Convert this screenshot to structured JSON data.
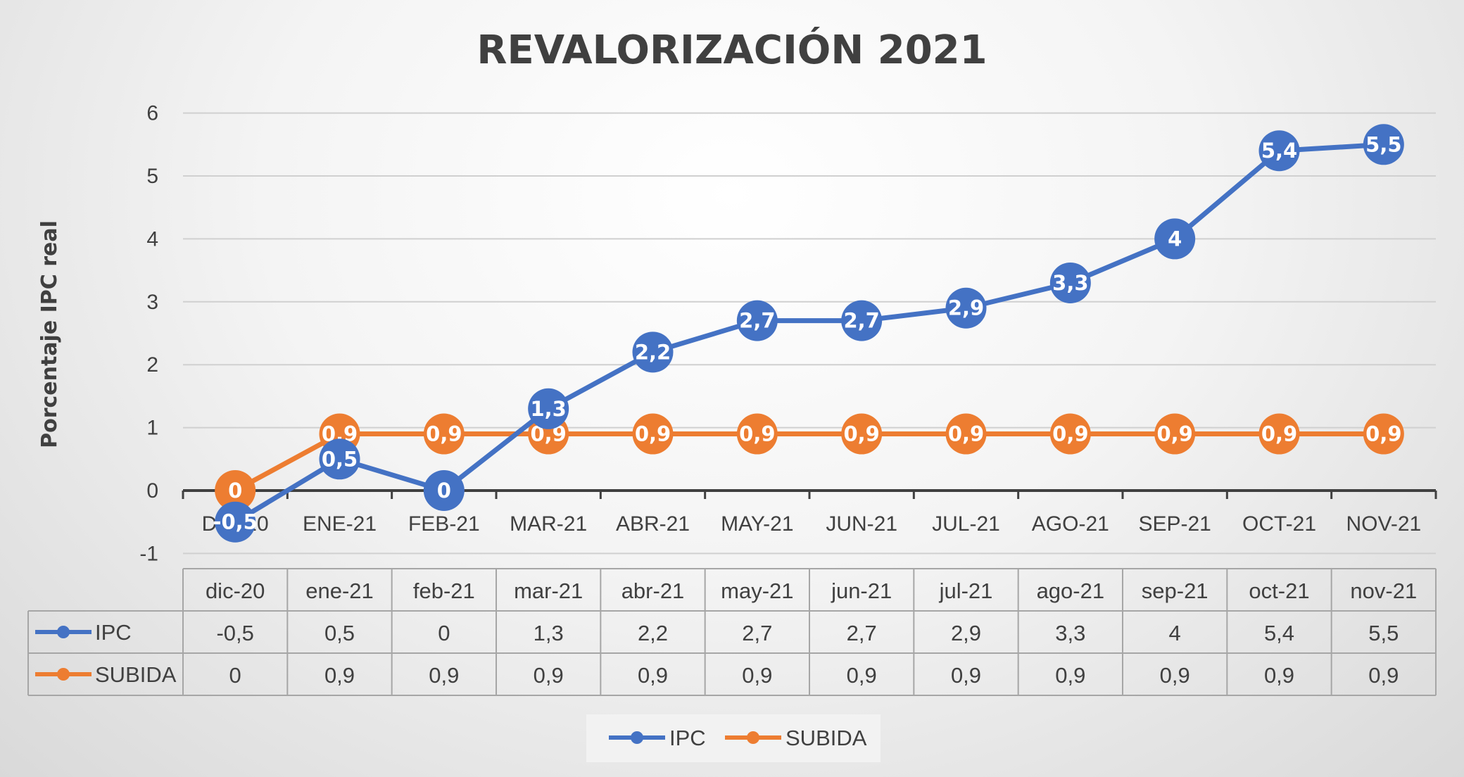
{
  "chart_data": {
    "type": "line",
    "title": "REVALORIZACIÓN 2021",
    "ylabel": "Porcentaje IPC real",
    "ylim": [
      -1,
      6
    ],
    "yticks": [
      -1,
      0,
      1,
      2,
      3,
      4,
      5,
      6
    ],
    "grid": true,
    "legend_position": "bottom",
    "categories": [
      "DIC-20",
      "ENE-21",
      "FEB-21",
      "MAR-21",
      "ABR-21",
      "MAY-21",
      "JUN-21",
      "JUL-21",
      "AGO-21",
      "SEP-21",
      "OCT-21",
      "NOV-21"
    ],
    "table_header": [
      "dic-20",
      "ene-21",
      "feb-21",
      "mar-21",
      "abr-21",
      "may-21",
      "jun-21",
      "jul-21",
      "ago-21",
      "sep-21",
      "oct-21",
      "nov-21"
    ],
    "series": [
      {
        "name": "IPC",
        "color": "#4472C4",
        "values": [
          -0.5,
          0.5,
          0,
          1.3,
          2.2,
          2.7,
          2.7,
          2.9,
          3.3,
          4,
          5.4,
          5.5
        ],
        "labels": [
          "-0,5",
          "0,5",
          "0",
          "1,3",
          "2,2",
          "2,7",
          "2,7",
          "2,9",
          "3,3",
          "4",
          "5,4",
          "5,5"
        ]
      },
      {
        "name": "SUBIDA",
        "color": "#ED7D31",
        "values": [
          0,
          0.9,
          0.9,
          0.9,
          0.9,
          0.9,
          0.9,
          0.9,
          0.9,
          0.9,
          0.9,
          0.9
        ],
        "labels": [
          "0",
          "0,9",
          "0,9",
          "0,9",
          "0,9",
          "0,9",
          "0,9",
          "0,9",
          "0,9",
          "0,9",
          "0,9",
          "0,9"
        ]
      }
    ]
  }
}
